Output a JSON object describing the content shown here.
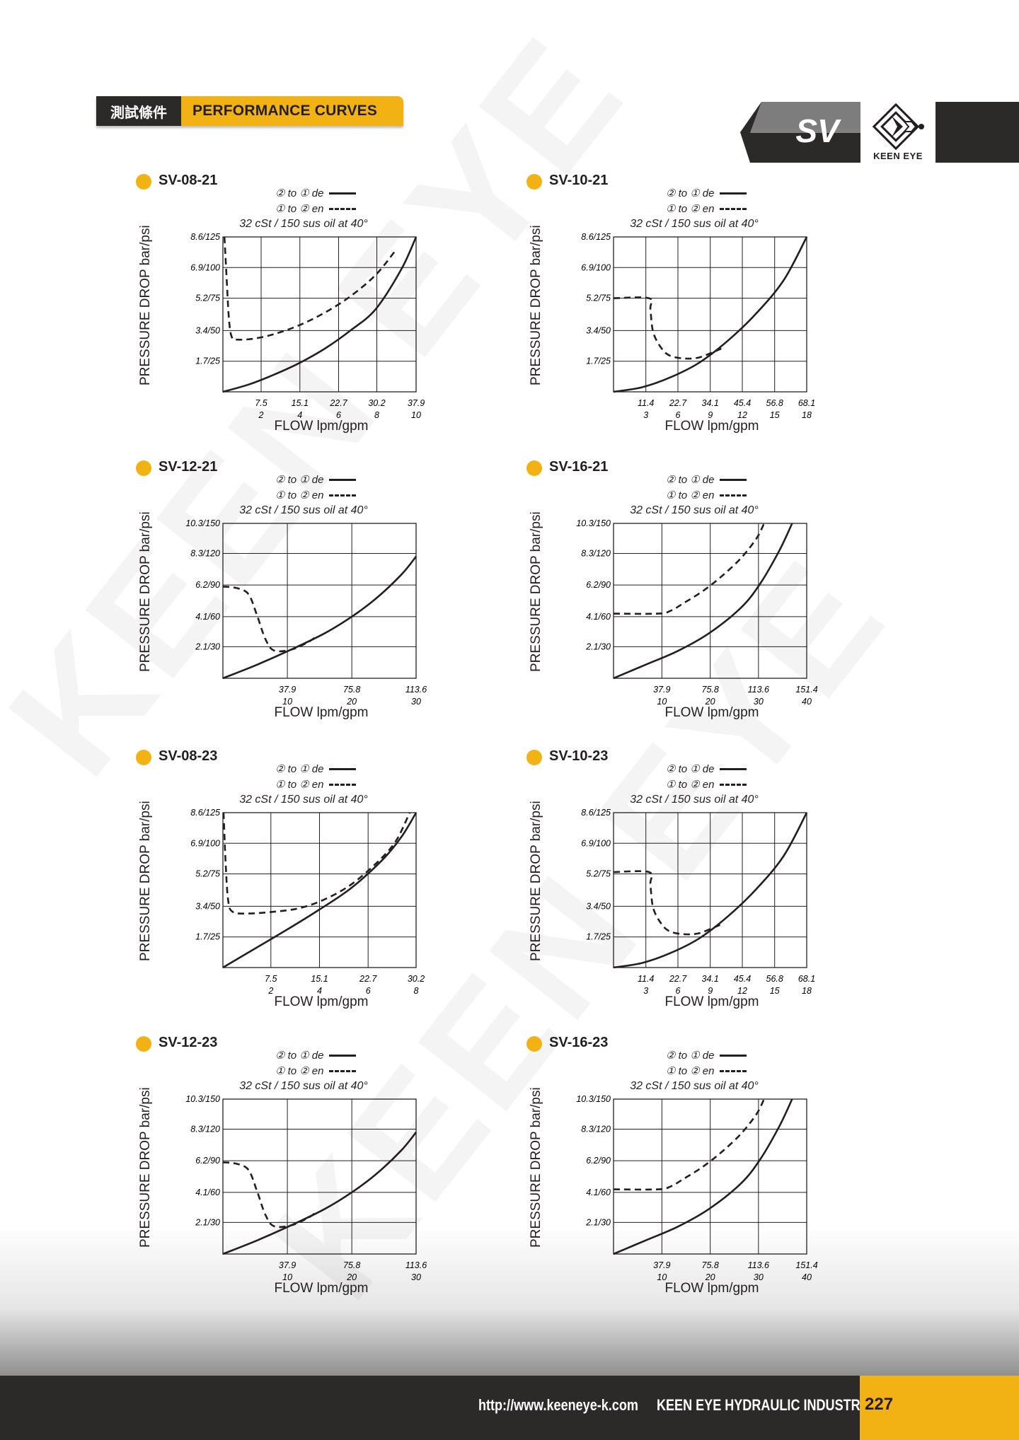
{
  "header": {
    "tag_cn": "測試條件",
    "tag_en": "PERFORMANCE CURVES",
    "series": "SV",
    "brand": "KEEN EYE"
  },
  "colors": {
    "accent": "#f2b213",
    "dark": "#2c2a29"
  },
  "legend": {
    "de_prefix": "② to ① ",
    "de_word": "de",
    "en_prefix": "① to ② ",
    "en_word": "en"
  },
  "footer": {
    "url": "http://www.keeneye-k.com",
    "company": "KEEN EYE HYDRAULIC INDUSTRIAL",
    "page": "227"
  },
  "chart_data": [
    {
      "type": "line",
      "title": "SV-08-21",
      "subtitle": "32 cSt / 150 sus oil at 40°",
      "xlabel": "FLOW  lpm/gpm",
      "ylabel": "PRESSURE DROP  bar/psi",
      "xlim": [
        0,
        37.9
      ],
      "ylim": [
        0,
        8.6
      ],
      "x_ticks": [
        7.5,
        15.1,
        22.7,
        30.2,
        37.9
      ],
      "x_tick_labels": [
        "7.5",
        "15.1",
        "22.7",
        "30.2",
        "37.9"
      ],
      "x_tick_sub": [
        "2",
        "4",
        "6",
        "8",
        "10"
      ],
      "y_ticks": [
        1.7,
        3.4,
        5.2,
        6.9,
        8.6
      ],
      "y_tick_labels": [
        "1.7/25",
        "3.4/50",
        "5.2/75",
        "6.9/100",
        "8.6/125"
      ],
      "series": [
        {
          "name": "② to ① de",
          "style": "solid",
          "x": [
            0,
            5,
            10,
            15,
            20,
            25,
            30,
            35,
            37.9
          ],
          "y": [
            0,
            0.4,
            0.95,
            1.6,
            2.4,
            3.4,
            4.6,
            6.8,
            8.6
          ]
        },
        {
          "name": "① to ② en",
          "style": "dashed",
          "x": [
            0.3,
            0.7,
            1.2,
            1.8,
            3,
            6,
            10,
            15,
            20,
            25,
            30,
            34
          ],
          "y": [
            8.6,
            6.5,
            4.0,
            3.0,
            2.9,
            2.95,
            3.2,
            3.7,
            4.4,
            5.3,
            6.5,
            7.9
          ]
        }
      ]
    },
    {
      "type": "line",
      "title": "SV-10-21",
      "subtitle": "32 cSt / 150 sus oil at 40°",
      "xlabel": "FLOW  lpm/gpm",
      "ylabel": "PRESSURE DROP  bar/psi",
      "xlim": [
        0,
        68.1
      ],
      "ylim": [
        0,
        8.6
      ],
      "x_ticks": [
        11.4,
        22.7,
        34.1,
        45.4,
        56.8,
        68.1
      ],
      "x_tick_labels": [
        "11.4",
        "22.7",
        "34.1",
        "45.4",
        "56.8",
        "68.1"
      ],
      "x_tick_sub": [
        "3",
        "6",
        "9",
        "12",
        "15",
        "18"
      ],
      "y_ticks": [
        1.7,
        3.4,
        5.2,
        6.9,
        8.6
      ],
      "y_tick_labels": [
        "1.7/25",
        "3.4/50",
        "5.2/75",
        "6.9/100",
        "8.6/125"
      ],
      "series": [
        {
          "name": "② to ① de",
          "style": "solid",
          "x": [
            0,
            10,
            20,
            30,
            40,
            50,
            60,
            68.1
          ],
          "y": [
            0,
            0.25,
            0.8,
            1.6,
            2.8,
            4.3,
            6.2,
            8.6
          ]
        },
        {
          "name": "① to ② en",
          "style": "dashed",
          "x": [
            0,
            12.5,
            13,
            14,
            17,
            20,
            25,
            30,
            35,
            38
          ],
          "y": [
            5.2,
            5.2,
            4.6,
            3.3,
            2.4,
            2.0,
            1.85,
            1.9,
            2.2,
            2.4
          ]
        }
      ]
    },
    {
      "type": "line",
      "title": "SV-12-21",
      "subtitle": "32 cSt / 150 sus oil at 40°",
      "xlabel": "FLOW  lpm/gpm",
      "ylabel": "PRESSURE DROP  bar/psi",
      "xlim": [
        0,
        113.6
      ],
      "ylim": [
        0,
        10.3
      ],
      "x_ticks": [
        37.9,
        75.8,
        113.6
      ],
      "x_tick_labels": [
        "37.9",
        "75.8",
        "113.6"
      ],
      "x_tick_sub": [
        "10",
        "20",
        "30"
      ],
      "y_ticks": [
        2.1,
        4.1,
        6.2,
        8.3,
        10.3
      ],
      "y_tick_labels": [
        "2.1/30",
        "4.1/60",
        "6.2/90",
        "8.3/120",
        "10.3/150"
      ],
      "series": [
        {
          "name": "② to ① de",
          "style": "solid",
          "x": [
            0,
            20,
            40,
            60,
            75.8,
            90,
            105,
            113.6
          ],
          "y": [
            0,
            0.9,
            1.9,
            3.0,
            4.1,
            5.3,
            6.9,
            8.1
          ]
        },
        {
          "name": "① to ② en",
          "style": "dashed",
          "x": [
            0,
            8,
            15,
            20,
            25,
            30,
            40,
            50,
            55
          ],
          "y": [
            6.1,
            6.0,
            5.6,
            4.2,
            2.6,
            1.85,
            1.9,
            2.4,
            2.8
          ]
        }
      ]
    },
    {
      "type": "line",
      "title": "SV-16-21",
      "subtitle": "32 cSt / 150 sus oil at 40°",
      "xlabel": "FLOW  lpm/gpm",
      "ylabel": "PRESSURE DROP  bar/psi",
      "xlim": [
        0,
        151.4
      ],
      "ylim": [
        0,
        10.3
      ],
      "x_ticks": [
        37.9,
        75.8,
        113.6,
        151.4
      ],
      "x_tick_labels": [
        "37.9",
        "75.8",
        "113.6",
        "151.4"
      ],
      "x_tick_sub": [
        "10",
        "20",
        "30",
        "40"
      ],
      "y_ticks": [
        2.1,
        4.1,
        6.2,
        8.3,
        10.3
      ],
      "y_tick_labels": [
        "2.1/30",
        "4.1/60",
        "6.2/90",
        "8.3/120",
        "10.3/150"
      ],
      "series": [
        {
          "name": "② to ① de",
          "style": "solid",
          "x": [
            0,
            25,
            50,
            75,
            100,
            115,
            130,
            140
          ],
          "y": [
            0,
            0.9,
            1.8,
            3.0,
            4.7,
            6.3,
            8.5,
            10.3
          ]
        },
        {
          "name": "① to ② en",
          "style": "dashed",
          "x": [
            0,
            35,
            45,
            55,
            70,
            85,
            100,
            112,
            118
          ],
          "y": [
            4.3,
            4.3,
            4.5,
            5.0,
            5.8,
            6.8,
            8.0,
            9.3,
            10.3
          ]
        }
      ]
    },
    {
      "type": "line",
      "title": "SV-08-23",
      "subtitle": "32 cSt / 150 sus oil at 40°",
      "xlabel": "FLOW  lpm/gpm",
      "ylabel": "PRESSURE DROP  bar/psi",
      "xlim": [
        0,
        30.2
      ],
      "ylim": [
        0,
        8.6
      ],
      "x_ticks": [
        7.5,
        15.1,
        22.7,
        30.2
      ],
      "x_tick_labels": [
        "7.5",
        "15.1",
        "22.7",
        "30.2"
      ],
      "x_tick_sub": [
        "2",
        "4",
        "6",
        "8"
      ],
      "y_ticks": [
        1.7,
        3.4,
        5.2,
        6.9,
        8.6
      ],
      "y_tick_labels": [
        "1.7/25",
        "3.4/50",
        "5.2/75",
        "6.9/100",
        "8.6/125"
      ],
      "series": [
        {
          "name": "② to ① de",
          "style": "solid",
          "x": [
            0,
            5,
            10,
            15,
            20,
            25,
            28,
            30.2
          ],
          "y": [
            0,
            1.05,
            2.1,
            3.2,
            4.4,
            6.0,
            7.3,
            8.6
          ]
        },
        {
          "name": "① to ② en",
          "style": "dashed",
          "x": [
            0.1,
            0.4,
            0.8,
            1.5,
            4,
            8,
            12,
            16,
            20,
            24,
            27,
            29.2
          ],
          "y": [
            8.6,
            6.0,
            3.8,
            3.1,
            3.0,
            3.1,
            3.3,
            3.8,
            4.6,
            5.8,
            7.0,
            8.6
          ]
        }
      ]
    },
    {
      "type": "line",
      "title": "SV-10-23",
      "subtitle": "32 cSt / 150 sus oil at 40°",
      "xlabel": "FLOW  lpm/gpm",
      "ylabel": "PRESSURE DROP  bar/psi",
      "xlim": [
        0,
        68.1
      ],
      "ylim": [
        0,
        8.6
      ],
      "x_ticks": [
        11.4,
        22.7,
        34.1,
        45.4,
        56.8,
        68.1
      ],
      "x_tick_labels": [
        "11.4",
        "22.7",
        "34.1",
        "45.4",
        "56.8",
        "68.1"
      ],
      "x_tick_sub": [
        "3",
        "6",
        "9",
        "12",
        "15",
        "18"
      ],
      "y_ticks": [
        1.7,
        3.4,
        5.2,
        6.9,
        8.6
      ],
      "y_tick_labels": [
        "1.7/25",
        "3.4/50",
        "5.2/75",
        "6.9/100",
        "8.6/125"
      ],
      "series": [
        {
          "name": "② to ① de",
          "style": "solid",
          "x": [
            0,
            10,
            20,
            30,
            40,
            50,
            60,
            68.1
          ],
          "y": [
            0,
            0.25,
            0.8,
            1.6,
            2.8,
            4.3,
            6.2,
            8.6
          ]
        },
        {
          "name": "① to ② en",
          "style": "dashed",
          "x": [
            0,
            12.5,
            13,
            14,
            17,
            20,
            25,
            30,
            35,
            38
          ],
          "y": [
            5.3,
            5.3,
            4.6,
            3.3,
            2.4,
            2.0,
            1.85,
            1.9,
            2.2,
            2.4
          ]
        }
      ]
    },
    {
      "type": "line",
      "title": "SV-12-23",
      "subtitle": "32 cSt / 150 sus oil at 40°",
      "xlabel": "FLOW  lpm/gpm",
      "ylabel": "PRESSURE DROP  bar/psi",
      "xlim": [
        0,
        113.6
      ],
      "ylim": [
        0,
        10.3
      ],
      "x_ticks": [
        37.9,
        75.8,
        113.6
      ],
      "x_tick_labels": [
        "37.9",
        "75.8",
        "113.6"
      ],
      "x_tick_sub": [
        "10",
        "20",
        "30"
      ],
      "y_ticks": [
        2.1,
        4.1,
        6.2,
        8.3,
        10.3
      ],
      "y_tick_labels": [
        "2.1/30",
        "4.1/60",
        "6.2/90",
        "8.3/120",
        "10.3/150"
      ],
      "series": [
        {
          "name": "② to ① de",
          "style": "solid",
          "x": [
            0,
            20,
            40,
            60,
            75.8,
            90,
            105,
            113.6
          ],
          "y": [
            0,
            0.9,
            1.9,
            3.0,
            4.1,
            5.3,
            6.9,
            8.1
          ]
        },
        {
          "name": "① to ② en",
          "style": "dashed",
          "x": [
            0,
            8,
            15,
            20,
            25,
            30,
            40,
            50,
            55
          ],
          "y": [
            6.1,
            6.0,
            5.6,
            4.2,
            2.6,
            1.85,
            1.9,
            2.4,
            2.8
          ]
        }
      ]
    },
    {
      "type": "line",
      "title": "SV-16-23",
      "subtitle": "32 cSt / 150 sus oil at 40°",
      "xlabel": "FLOW  lpm/gpm",
      "ylabel": "PRESSURE DROP  bar/psi",
      "xlim": [
        0,
        151.4
      ],
      "ylim": [
        0,
        10.3
      ],
      "x_ticks": [
        37.9,
        75.8,
        113.6,
        151.4
      ],
      "x_tick_labels": [
        "37.9",
        "75.8",
        "113.6",
        "151.4"
      ],
      "x_tick_sub": [
        "10",
        "20",
        "30",
        "40"
      ],
      "y_ticks": [
        2.1,
        4.1,
        6.2,
        8.3,
        10.3
      ],
      "y_tick_labels": [
        "2.1/30",
        "4.1/60",
        "6.2/90",
        "8.3/120",
        "10.3/150"
      ],
      "series": [
        {
          "name": "② to ① de",
          "style": "solid",
          "x": [
            0,
            25,
            50,
            75,
            100,
            115,
            130,
            140
          ],
          "y": [
            0,
            0.9,
            1.8,
            3.0,
            4.7,
            6.3,
            8.5,
            10.3
          ]
        },
        {
          "name": "① to ② en",
          "style": "dashed",
          "x": [
            0,
            35,
            45,
            55,
            70,
            85,
            100,
            112,
            118
          ],
          "y": [
            4.3,
            4.3,
            4.5,
            5.0,
            5.8,
            6.8,
            8.0,
            9.3,
            10.3
          ]
        }
      ]
    }
  ]
}
